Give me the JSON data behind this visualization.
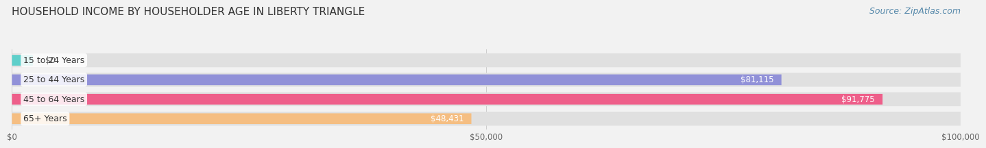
{
  "title": "HOUSEHOLD INCOME BY HOUSEHOLDER AGE IN LIBERTY TRIANGLE",
  "source": "Source: ZipAtlas.com",
  "categories": [
    "15 to 24 Years",
    "25 to 44 Years",
    "45 to 64 Years",
    "65+ Years"
  ],
  "values": [
    0,
    81115,
    91775,
    48431
  ],
  "bar_colors": [
    "#5ECFCA",
    "#9191D8",
    "#EE5F8A",
    "#F5BE82"
  ],
  "value_labels": [
    "$0",
    "$81,115",
    "$91,775",
    "$48,431"
  ],
  "xlim": [
    0,
    100000
  ],
  "xticks": [
    0,
    50000,
    100000
  ],
  "xtick_labels": [
    "$0",
    "$50,000",
    "$100,000"
  ],
  "background_color": "#f2f2f2",
  "bar_bg_color": "#e0e0e0",
  "title_fontsize": 11,
  "source_fontsize": 9,
  "label_fontsize": 9,
  "value_fontsize": 8.5,
  "tick_fontsize": 8.5
}
